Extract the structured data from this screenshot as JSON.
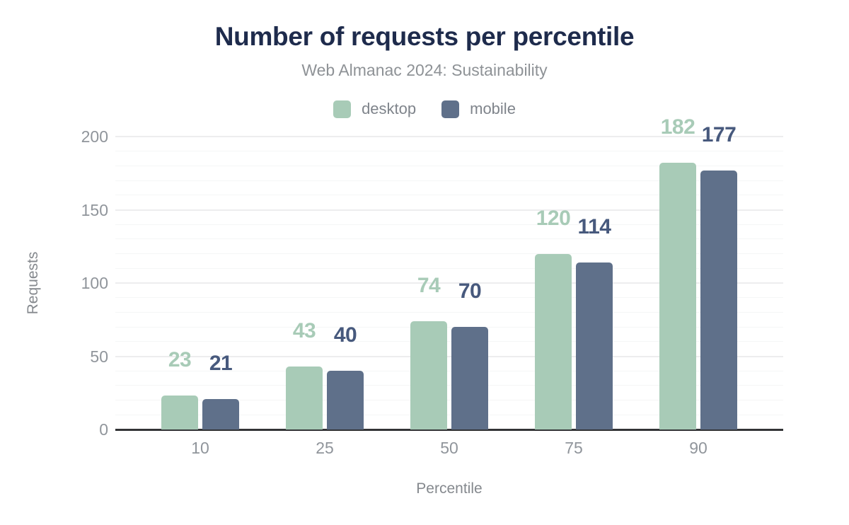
{
  "chart_data": {
    "type": "bar",
    "title": "Number of requests per percentile",
    "subtitle": "Web Almanac 2024: Sustainability",
    "categories": [
      "10",
      "25",
      "50",
      "75",
      "90"
    ],
    "series": [
      {
        "name": "desktop",
        "values": [
          23,
          43,
          74,
          120,
          182
        ],
        "color": "#a8cbb7",
        "label_color": "#a8cbb7"
      },
      {
        "name": "mobile",
        "values": [
          21,
          40,
          70,
          114,
          177
        ],
        "color": "#5f708a",
        "label_color": "#47597d"
      }
    ],
    "xlabel": "Percentile",
    "ylabel": "Requests",
    "ylim": [
      0,
      200
    ],
    "y_ticks": [
      0,
      50,
      100,
      150,
      200
    ],
    "grid": {
      "minor_step": 10,
      "major_step": 50,
      "vertical": false
    },
    "legend_position": "top",
    "value_labels": true,
    "colors": {
      "title": "#1e2b4c",
      "subtitle": "#8e9296",
      "axis_text": "#90959b",
      "axis_line": "#333436",
      "grid_major": "#ededee",
      "grid_minor": "#f5f6f6",
      "background": "#ffffff"
    }
  }
}
